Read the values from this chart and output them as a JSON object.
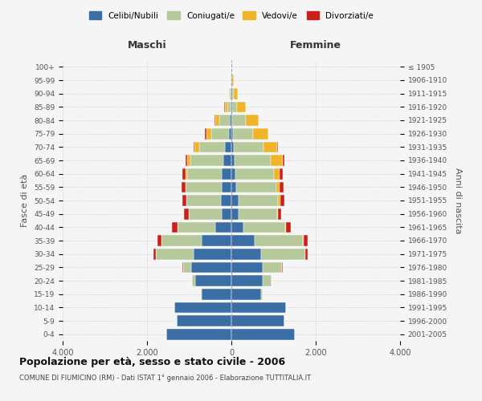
{
  "age_groups": [
    "0-4",
    "5-9",
    "10-14",
    "15-19",
    "20-24",
    "25-29",
    "30-34",
    "35-39",
    "40-44",
    "45-49",
    "50-54",
    "55-59",
    "60-64",
    "65-69",
    "70-74",
    "75-79",
    "80-84",
    "85-89",
    "90-94",
    "95-99",
    "100+"
  ],
  "birth_years": [
    "2001-2005",
    "1996-2000",
    "1991-1995",
    "1986-1990",
    "1981-1985",
    "1976-1980",
    "1971-1975",
    "1966-1970",
    "1961-1965",
    "1956-1960",
    "1951-1955",
    "1946-1950",
    "1941-1945",
    "1936-1940",
    "1931-1935",
    "1926-1930",
    "1921-1925",
    "1916-1920",
    "1911-1915",
    "1906-1910",
    "≤ 1905"
  ],
  "males": {
    "celibi": [
      1550,
      1300,
      1350,
      700,
      850,
      950,
      900,
      700,
      380,
      230,
      240,
      230,
      220,
      200,
      150,
      60,
      40,
      20,
      10,
      5,
      0
    ],
    "coniugati": [
      0,
      0,
      0,
      20,
      80,
      200,
      900,
      950,
      900,
      780,
      820,
      850,
      830,
      780,
      620,
      420,
      250,
      80,
      30,
      15,
      0
    ],
    "vedovi": [
      0,
      0,
      0,
      0,
      0,
      0,
      0,
      5,
      5,
      5,
      5,
      10,
      30,
      60,
      100,
      120,
      100,
      60,
      20,
      5,
      0
    ],
    "divorziati": [
      0,
      0,
      0,
      0,
      5,
      5,
      50,
      100,
      120,
      100,
      100,
      100,
      80,
      50,
      30,
      20,
      5,
      5,
      0,
      0,
      0
    ]
  },
  "females": {
    "nubili": [
      1500,
      1250,
      1300,
      700,
      750,
      750,
      700,
      550,
      280,
      180,
      180,
      120,
      100,
      80,
      60,
      40,
      20,
      15,
      10,
      5,
      0
    ],
    "coniugate": [
      0,
      0,
      0,
      50,
      200,
      450,
      1050,
      1150,
      1000,
      900,
      930,
      950,
      900,
      850,
      700,
      480,
      320,
      120,
      40,
      10,
      0
    ],
    "vedove": [
      0,
      0,
      0,
      0,
      0,
      5,
      5,
      10,
      20,
      30,
      50,
      80,
      150,
      280,
      320,
      350,
      300,
      200,
      100,
      40,
      5
    ],
    "divorziate": [
      0,
      0,
      0,
      0,
      5,
      5,
      50,
      100,
      100,
      80,
      90,
      80,
      60,
      40,
      20,
      10,
      5,
      5,
      0,
      0,
      0
    ]
  },
  "colors": {
    "celibi": "#3a6ea5",
    "coniugati": "#b5c99a",
    "vedovi": "#f0b429",
    "divorziati": "#cc1f1a"
  },
  "xlim": 4000,
  "title": "Popolazione per età, sesso e stato civile - 2006",
  "subtitle": "COMUNE DI FIUMICINO (RM) - Dati ISTAT 1° gennaio 2006 - Elaborazione TUTTITALIA.IT",
  "ylabel_left": "Fasce di età",
  "ylabel_right": "Anni di nascita",
  "xlabel_maschi": "Maschi",
  "xlabel_femmine": "Femmine",
  "legend_labels": [
    "Celibi/Nubili",
    "Coniugati/e",
    "Vedovi/e",
    "Divorziati/e"
  ],
  "bg_color": "#f5f5f5",
  "grid_color": "#cccccc"
}
